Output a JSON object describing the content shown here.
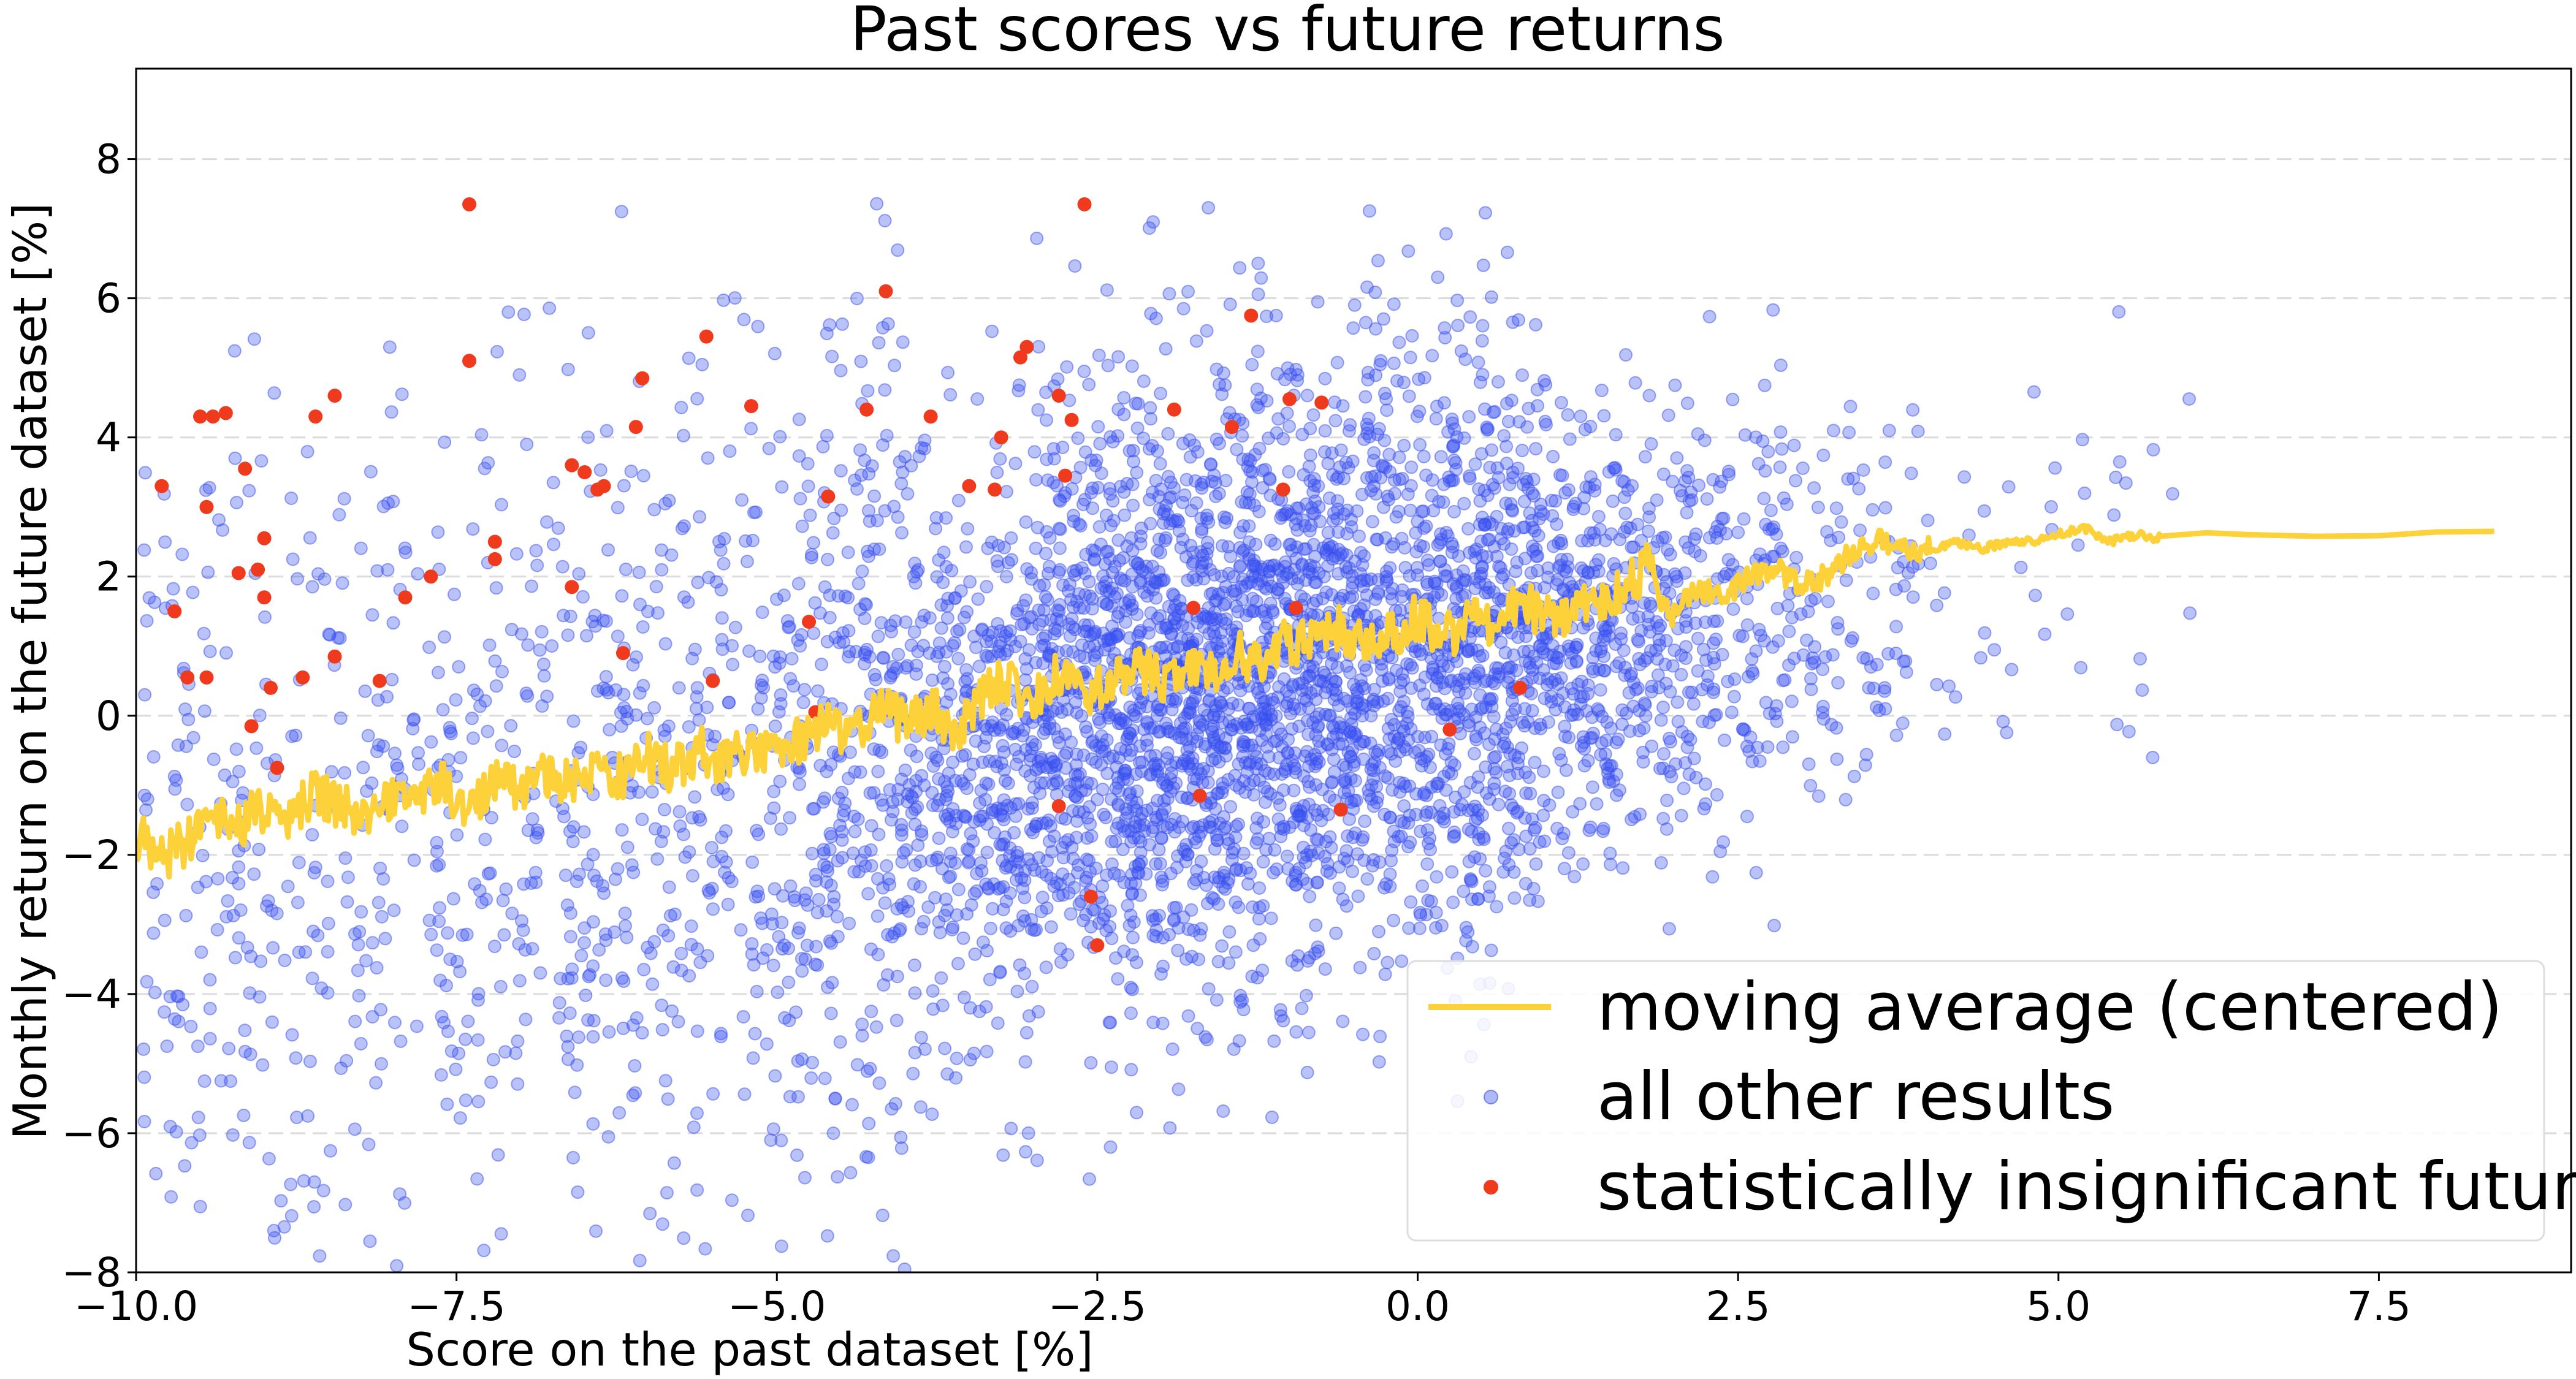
{
  "chart_data": {
    "type": "scatter",
    "title": "Past scores vs future returns",
    "xlabel": "Score on the past dataset [%]",
    "ylabel": "Monthly return on the future dataset [%]",
    "xlim": [
      -10.0,
      9.0
    ],
    "ylim": [
      -8.0,
      9.3
    ],
    "x_ticks": [
      -10.0,
      -7.5,
      -5.0,
      -2.5,
      0.0,
      2.5,
      5.0,
      7.5
    ],
    "x_tick_labels": [
      "−10.0",
      "−7.5",
      "−5.0",
      "−2.5",
      "0.0",
      "2.5",
      "5.0",
      "7.5"
    ],
    "y_ticks": [
      -8,
      -6,
      -4,
      -2,
      0,
      2,
      4,
      6,
      8
    ],
    "y_tick_labels": [
      "−8",
      "−6",
      "−4",
      "−2",
      "0",
      "2",
      "4",
      "6",
      "8"
    ],
    "grid": "horizontal dashed",
    "legend_position": "lower right",
    "series": [
      {
        "name": "moving average (centered)",
        "kind": "line",
        "color": "#FDD13A",
        "x": [
          -10.0,
          -9.8,
          -9.6,
          -9.4,
          -9.2,
          -9.0,
          -8.8,
          -8.6,
          -8.4,
          -8.2,
          -8.0,
          -7.8,
          -7.6,
          -7.4,
          -7.2,
          -7.0,
          -6.8,
          -6.6,
          -6.4,
          -6.2,
          -6.0,
          -5.8,
          -5.6,
          -5.4,
          -5.2,
          -5.0,
          -4.8,
          -4.6,
          -4.4,
          -4.2,
          -4.0,
          -3.8,
          -3.6,
          -3.4,
          -3.2,
          -3.0,
          -2.8,
          -2.6,
          -2.4,
          -2.2,
          -2.0,
          -1.8,
          -1.6,
          -1.4,
          -1.2,
          -1.0,
          -0.8,
          -0.6,
          -0.4,
          -0.2,
          0.0,
          0.2,
          0.4,
          0.6,
          0.8,
          1.0,
          1.2,
          1.4,
          1.6,
          1.8,
          2.0,
          2.2,
          2.4,
          2.6,
          2.8,
          3.0,
          3.2,
          3.4,
          3.6,
          3.8,
          4.0,
          4.2,
          4.4,
          4.6,
          4.8,
          5.0,
          5.2,
          5.4,
          5.6,
          5.8,
          6.5,
          7.5,
          8.4
        ],
        "y": [
          -1.7,
          -2.1,
          -1.8,
          -1.4,
          -1.6,
          -1.3,
          -1.5,
          -1.1,
          -1.3,
          -1.5,
          -1.1,
          -1.2,
          -1.0,
          -1.3,
          -0.9,
          -1.1,
          -0.8,
          -1.0,
          -0.7,
          -0.9,
          -0.6,
          -0.8,
          -0.5,
          -0.7,
          -0.4,
          -0.6,
          -0.3,
          -0.1,
          -0.3,
          0.2,
          -0.1,
          0.1,
          -0.2,
          0.3,
          0.5,
          0.2,
          0.6,
          0.3,
          0.4,
          0.7,
          0.5,
          0.8,
          0.6,
          0.9,
          0.7,
          1.1,
          1.0,
          1.3,
          0.9,
          1.2,
          1.4,
          1.1,
          1.4,
          1.3,
          1.6,
          1.5,
          1.4,
          1.7,
          1.8,
          2.2,
          1.5,
          1.8,
          1.7,
          2.0,
          2.1,
          1.9,
          2.0,
          2.4,
          2.5,
          2.4,
          2.4,
          2.5,
          2.4,
          2.5,
          2.5,
          2.6,
          2.7,
          2.5,
          2.6,
          2.55,
          2.6,
          2.62,
          2.65
        ]
      },
      {
        "name": "all other results",
        "kind": "scatter",
        "color": "#3850F0",
        "count_approx": 5000,
        "distribution": "bivariate normal, density peaking near x=-1, y=1.5; x mostly -10 to 3, y mostly -8 to 7"
      },
      {
        "name": "statistically insignificant future",
        "kind": "scatter",
        "color": "#F03A1E",
        "points": [
          [
            -9.8,
            3.3
          ],
          [
            -9.7,
            1.5
          ],
          [
            -9.6,
            0.55
          ],
          [
            -9.5,
            4.3
          ],
          [
            -9.4,
            4.3
          ],
          [
            -9.3,
            4.35
          ],
          [
            -9.2,
            2.05
          ],
          [
            -9.15,
            3.55
          ],
          [
            -9.05,
            2.1
          ],
          [
            -9.0,
            1.7
          ],
          [
            -8.95,
            0.4
          ],
          [
            -8.9,
            -0.75
          ],
          [
            -9.1,
            -0.15
          ],
          [
            -9.45,
            0.55
          ],
          [
            -9.45,
            3.0
          ],
          [
            -9.0,
            2.55
          ],
          [
            -8.6,
            4.3
          ],
          [
            -8.45,
            4.6
          ],
          [
            -8.7,
            0.55
          ],
          [
            -8.45,
            0.85
          ],
          [
            -8.1,
            0.5
          ],
          [
            -7.9,
            1.7
          ],
          [
            -7.7,
            2.0
          ],
          [
            -7.4,
            7.35
          ],
          [
            -7.4,
            5.1
          ],
          [
            -7.2,
            2.25
          ],
          [
            -7.2,
            2.5
          ],
          [
            -6.6,
            3.6
          ],
          [
            -6.5,
            3.5
          ],
          [
            -6.6,
            1.85
          ],
          [
            -6.4,
            3.25
          ],
          [
            -6.35,
            3.3
          ],
          [
            -6.2,
            0.9
          ],
          [
            -6.05,
            4.85
          ],
          [
            -6.1,
            4.15
          ],
          [
            -5.55,
            5.45
          ],
          [
            -5.5,
            0.5
          ],
          [
            -5.2,
            4.45
          ],
          [
            -4.75,
            1.35
          ],
          [
            -4.6,
            3.15
          ],
          [
            -4.3,
            4.4
          ],
          [
            -4.15,
            6.1
          ],
          [
            -3.8,
            4.3
          ],
          [
            -3.5,
            3.3
          ],
          [
            -3.25,
            4.0
          ],
          [
            -3.3,
            3.25
          ],
          [
            -3.1,
            5.15
          ],
          [
            -3.05,
            5.3
          ],
          [
            -2.8,
            4.6
          ],
          [
            -2.75,
            3.45
          ],
          [
            -2.7,
            4.25
          ],
          [
            -2.6,
            7.35
          ],
          [
            -2.55,
            -2.6
          ],
          [
            -2.5,
            -3.3
          ],
          [
            -2.8,
            -1.3
          ],
          [
            -1.9,
            4.4
          ],
          [
            -1.75,
            1.55
          ],
          [
            -1.7,
            -1.15
          ],
          [
            -1.45,
            4.15
          ],
          [
            -1.3,
            5.75
          ],
          [
            -1.05,
            3.25
          ],
          [
            -1.0,
            4.55
          ],
          [
            -0.95,
            1.55
          ],
          [
            -0.6,
            -1.35
          ],
          [
            -0.75,
            4.5
          ],
          [
            0.25,
            -0.2
          ],
          [
            0.8,
            0.4
          ],
          [
            -4.7,
            0.05
          ]
        ]
      }
    ]
  }
}
